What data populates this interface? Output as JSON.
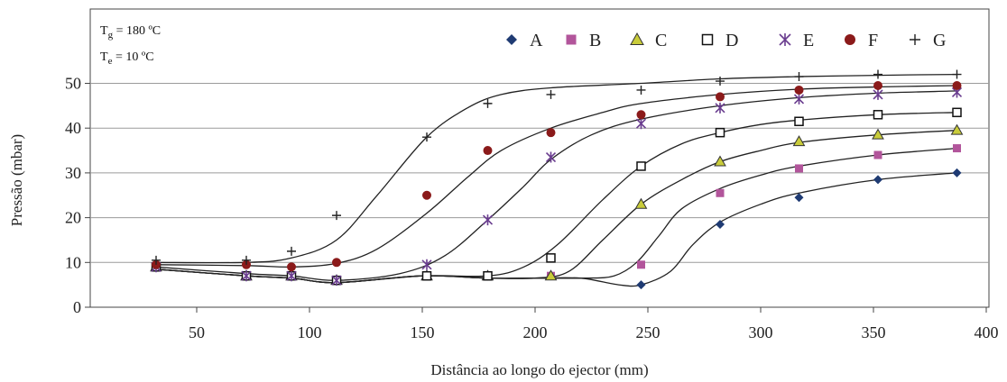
{
  "chart_data": {
    "type": "scatter",
    "xlabel": "Distância ao longo do ejector (mm)",
    "ylabel": "Pressão (mbar)",
    "xlim": [
      0,
      400
    ],
    "ylim": [
      0,
      60
    ],
    "x_ticks": [
      50,
      100,
      150,
      200,
      250,
      300,
      350,
      400
    ],
    "y_ticks": [
      0,
      10,
      20,
      30,
      40,
      50
    ],
    "grid": "horizontal",
    "legend_position": "top-right",
    "conditions": [
      {
        "symbol": "T",
        "sub": "g",
        "value": " = 180 ºC"
      },
      {
        "symbol": "T",
        "sub": "e",
        "value": " = 10 ºC"
      }
    ],
    "series": [
      {
        "name": "A",
        "marker": "diamond",
        "color": "#1f3b73",
        "points": [
          [
            32,
            9.5
          ],
          [
            72,
            7
          ],
          [
            92,
            7
          ],
          [
            112,
            6
          ],
          [
            152,
            7
          ],
          [
            179,
            7
          ],
          [
            207,
            7
          ],
          [
            247,
            5
          ],
          [
            282,
            18.5
          ],
          [
            317,
            24.5
          ],
          [
            352,
            28.5
          ],
          [
            387,
            30
          ]
        ],
        "curve": [
          [
            32,
            8.5
          ],
          [
            72,
            7
          ],
          [
            92,
            6.5
          ],
          [
            112,
            5.5
          ],
          [
            150,
            7
          ],
          [
            179,
            6.5
          ],
          [
            200,
            6.5
          ],
          [
            220,
            6.5
          ],
          [
            237,
            5
          ],
          [
            247,
            5
          ],
          [
            260,
            8
          ],
          [
            270,
            14
          ],
          [
            282,
            19
          ],
          [
            300,
            23
          ],
          [
            317,
            25.5
          ],
          [
            352,
            28.5
          ],
          [
            387,
            30
          ]
        ]
      },
      {
        "name": "B",
        "marker": "square",
        "color": "#b2559b",
        "points": [
          [
            32,
            9
          ],
          [
            72,
            7
          ],
          [
            92,
            7
          ],
          [
            112,
            6
          ],
          [
            152,
            7
          ],
          [
            179,
            7
          ],
          [
            207,
            7
          ],
          [
            247,
            9.5
          ],
          [
            282,
            25.5
          ],
          [
            317,
            31
          ],
          [
            352,
            34
          ],
          [
            387,
            35.5
          ]
        ],
        "curve": [
          [
            32,
            8.5
          ],
          [
            72,
            7
          ],
          [
            92,
            6.5
          ],
          [
            112,
            5.5
          ],
          [
            150,
            7
          ],
          [
            179,
            6.5
          ],
          [
            200,
            6.5
          ],
          [
            222,
            6.5
          ],
          [
            235,
            7
          ],
          [
            245,
            10
          ],
          [
            255,
            16
          ],
          [
            265,
            22
          ],
          [
            282,
            26.5
          ],
          [
            300,
            29.5
          ],
          [
            317,
            31.5
          ],
          [
            352,
            34
          ],
          [
            387,
            35.5
          ]
        ]
      },
      {
        "name": "C",
        "marker": "triangle",
        "color": "#c9cc3a",
        "points": [
          [
            32,
            9
          ],
          [
            72,
            7
          ],
          [
            92,
            7
          ],
          [
            112,
            6
          ],
          [
            152,
            7
          ],
          [
            179,
            7
          ],
          [
            207,
            7
          ],
          [
            247,
            23
          ],
          [
            282,
            32.5
          ],
          [
            317,
            37
          ],
          [
            352,
            38.5
          ],
          [
            387,
            39.5
          ]
        ],
        "curve": [
          [
            32,
            8.5
          ],
          [
            72,
            7
          ],
          [
            92,
            6.5
          ],
          [
            112,
            5.5
          ],
          [
            150,
            7
          ],
          [
            179,
            6.5
          ],
          [
            200,
            6.5
          ],
          [
            215,
            8
          ],
          [
            230,
            15
          ],
          [
            247,
            23
          ],
          [
            265,
            28.5
          ],
          [
            282,
            32.5
          ],
          [
            300,
            35
          ],
          [
            317,
            36.8
          ],
          [
            352,
            38.5
          ],
          [
            387,
            39.5
          ]
        ]
      },
      {
        "name": "D",
        "marker": "open-square",
        "color": "#111111",
        "points": [
          [
            32,
            9
          ],
          [
            72,
            7
          ],
          [
            92,
            7
          ],
          [
            112,
            6
          ],
          [
            152,
            7
          ],
          [
            179,
            7
          ],
          [
            207,
            11
          ],
          [
            247,
            31.5
          ],
          [
            282,
            39
          ],
          [
            317,
            41.5
          ],
          [
            352,
            43
          ],
          [
            387,
            43.5
          ]
        ],
        "curve": [
          [
            32,
            8.5
          ],
          [
            72,
            7
          ],
          [
            92,
            6.5
          ],
          [
            112,
            5.5
          ],
          [
            150,
            7
          ],
          [
            179,
            7
          ],
          [
            195,
            9
          ],
          [
            210,
            14
          ],
          [
            230,
            24
          ],
          [
            247,
            31.5
          ],
          [
            265,
            36.5
          ],
          [
            282,
            39
          ],
          [
            300,
            40.8
          ],
          [
            317,
            41.8
          ],
          [
            352,
            43
          ],
          [
            387,
            43.5
          ]
        ]
      },
      {
        "name": "E",
        "marker": "star",
        "color": "#6a3d8f",
        "points": [
          [
            32,
            9
          ],
          [
            72,
            7
          ],
          [
            92,
            7
          ],
          [
            112,
            6
          ],
          [
            152,
            9.5
          ],
          [
            179,
            19.5
          ],
          [
            207,
            33.5
          ],
          [
            247,
            41
          ],
          [
            282,
            44.5
          ],
          [
            317,
            46.5
          ],
          [
            352,
            47.5
          ],
          [
            387,
            48
          ]
        ],
        "curve": [
          [
            32,
            9
          ],
          [
            72,
            7.5
          ],
          [
            92,
            7
          ],
          [
            112,
            6
          ],
          [
            140,
            7.5
          ],
          [
            160,
            11.5
          ],
          [
            179,
            19.5
          ],
          [
            195,
            27
          ],
          [
            207,
            33
          ],
          [
            225,
            38.5
          ],
          [
            247,
            42
          ],
          [
            282,
            45
          ],
          [
            317,
            46.8
          ],
          [
            352,
            47.8
          ],
          [
            387,
            48.3
          ]
        ]
      },
      {
        "name": "F",
        "marker": "circle",
        "color": "#8b1a1a",
        "points": [
          [
            32,
            9.5
          ],
          [
            72,
            9.5
          ],
          [
            92,
            9
          ],
          [
            112,
            10
          ],
          [
            152,
            25
          ],
          [
            179,
            35
          ],
          [
            207,
            39
          ],
          [
            247,
            43
          ],
          [
            282,
            47
          ],
          [
            317,
            48.5
          ],
          [
            352,
            49.5
          ],
          [
            387,
            49.5
          ]
        ],
        "curve": [
          [
            32,
            9.5
          ],
          [
            72,
            9.3
          ],
          [
            92,
            9
          ],
          [
            112,
            9.8
          ],
          [
            130,
            13
          ],
          [
            152,
            21
          ],
          [
            170,
            29
          ],
          [
            185,
            35
          ],
          [
            207,
            40
          ],
          [
            230,
            43.5
          ],
          [
            247,
            45.5
          ],
          [
            282,
            47.5
          ],
          [
            317,
            48.7
          ],
          [
            352,
            49.2
          ],
          [
            387,
            49.5
          ]
        ]
      },
      {
        "name": "G",
        "marker": "plus",
        "color": "#222222",
        "points": [
          [
            32,
            10.5
          ],
          [
            72,
            10.5
          ],
          [
            92,
            12.5
          ],
          [
            112,
            20.5
          ],
          [
            152,
            38
          ],
          [
            179,
            45.5
          ],
          [
            207,
            47.5
          ],
          [
            247,
            48.5
          ],
          [
            282,
            50.5
          ],
          [
            317,
            51.5
          ],
          [
            352,
            52
          ],
          [
            387,
            52
          ]
        ],
        "curve": [
          [
            32,
            10
          ],
          [
            72,
            10
          ],
          [
            92,
            11
          ],
          [
            112,
            15
          ],
          [
            130,
            25
          ],
          [
            152,
            38
          ],
          [
            170,
            44.5
          ],
          [
            185,
            47.5
          ],
          [
            207,
            49
          ],
          [
            247,
            50
          ],
          [
            282,
            51
          ],
          [
            317,
            51.5
          ],
          [
            352,
            51.8
          ],
          [
            387,
            52
          ]
        ]
      }
    ]
  }
}
